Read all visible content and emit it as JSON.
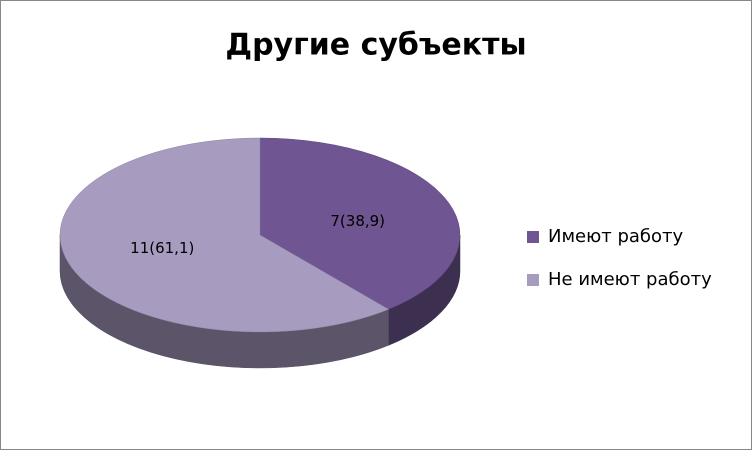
{
  "chart_data": {
    "type": "pie",
    "title": "Другие субъекты",
    "categories": [
      "Имеют работу",
      "Не имеют работу"
    ],
    "values": [
      7,
      11
    ],
    "value_labels": [
      "7(38,9)",
      "11(61,1)"
    ],
    "colors": [
      "#6f5591",
      "#a89bc0"
    ],
    "legend": "right"
  }
}
